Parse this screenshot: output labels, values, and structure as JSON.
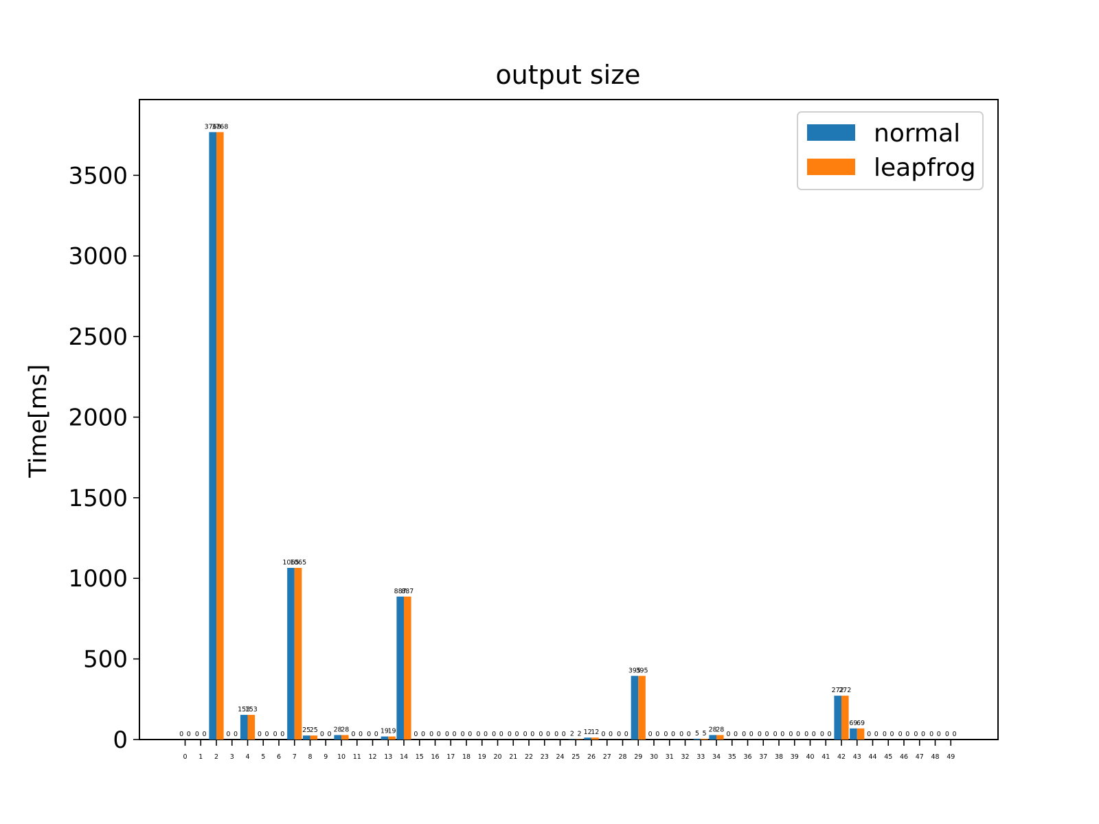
{
  "chart_data": {
    "type": "bar",
    "title": "output size",
    "xlabel": "",
    "ylabel": "Time[ms]",
    "ylim": [
      0,
      3970
    ],
    "yticks": [
      0,
      500,
      1000,
      1500,
      2000,
      2500,
      3000,
      3500
    ],
    "categories": [
      "0",
      "1",
      "2",
      "3",
      "4",
      "5",
      "6",
      "7",
      "8",
      "9",
      "10",
      "11",
      "12",
      "13",
      "14",
      "15",
      "16",
      "17",
      "18",
      "19",
      "20",
      "21",
      "22",
      "23",
      "24",
      "25",
      "26",
      "27",
      "28",
      "29",
      "30",
      "31",
      "32",
      "33",
      "34",
      "35",
      "36",
      "37",
      "38",
      "39",
      "40",
      "41",
      "42",
      "43",
      "44",
      "45",
      "46",
      "47",
      "48",
      "49"
    ],
    "series": [
      {
        "name": "normal",
        "color": "#1f77b4",
        "values": [
          0,
          0,
          3768,
          0,
          153,
          0,
          0,
          1065,
          25,
          0,
          28,
          0,
          0,
          19,
          887,
          0,
          0,
          0,
          0,
          0,
          0,
          0,
          0,
          0,
          0,
          2,
          12,
          0,
          0,
          395,
          0,
          0,
          0,
          5,
          28,
          0,
          0,
          0,
          0,
          0,
          0,
          0,
          272,
          69,
          0,
          0,
          0,
          0,
          0,
          0
        ]
      },
      {
        "name": "leapfrog",
        "color": "#ff7f0e",
        "values": [
          0,
          0,
          3768,
          0,
          153,
          0,
          0,
          1065,
          25,
          0,
          28,
          0,
          0,
          19,
          887,
          0,
          0,
          0,
          0,
          0,
          0,
          0,
          0,
          0,
          0,
          2,
          12,
          0,
          0,
          395,
          0,
          0,
          0,
          5,
          28,
          0,
          0,
          0,
          0,
          0,
          0,
          0,
          272,
          69,
          0,
          0,
          0,
          0,
          0,
          0
        ]
      }
    ],
    "legend_position": "top-right",
    "grid": false
  }
}
